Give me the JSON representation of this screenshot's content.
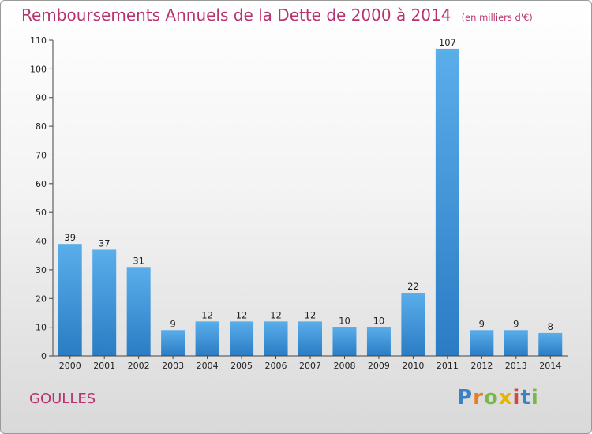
{
  "header": {
    "title": "Remboursements Annuels de la Dette de 2000 à 2014",
    "subtitle": "(en milliers d'€)"
  },
  "footer": {
    "commune": "GOULLES",
    "logo": {
      "letters": [
        "P",
        "r",
        "o",
        "x",
        "i",
        "t",
        "i"
      ],
      "colors": [
        "#3b82c4",
        "#e67e22",
        "#7ab648",
        "#e8b400",
        "#d64541",
        "#3b82c4",
        "#7ab648"
      ]
    }
  },
  "chart_data": {
    "type": "bar",
    "title": "Remboursements Annuels de la Dette de 2000 à 2014",
    "categories": [
      "2000",
      "2001",
      "2002",
      "2003",
      "2004",
      "2005",
      "2006",
      "2007",
      "2008",
      "2009",
      "2010",
      "2011",
      "2012",
      "2013",
      "2014"
    ],
    "values": [
      39,
      37,
      31,
      9,
      12,
      12,
      12,
      12,
      10,
      10,
      22,
      107,
      9,
      9,
      8
    ],
    "ylim": [
      0,
      110
    ],
    "yticks": [
      0,
      10,
      20,
      30,
      40,
      50,
      60,
      70,
      80,
      90,
      100,
      110
    ],
    "grid": false,
    "bar_color": "#3d9ae0",
    "data_labels": true
  }
}
